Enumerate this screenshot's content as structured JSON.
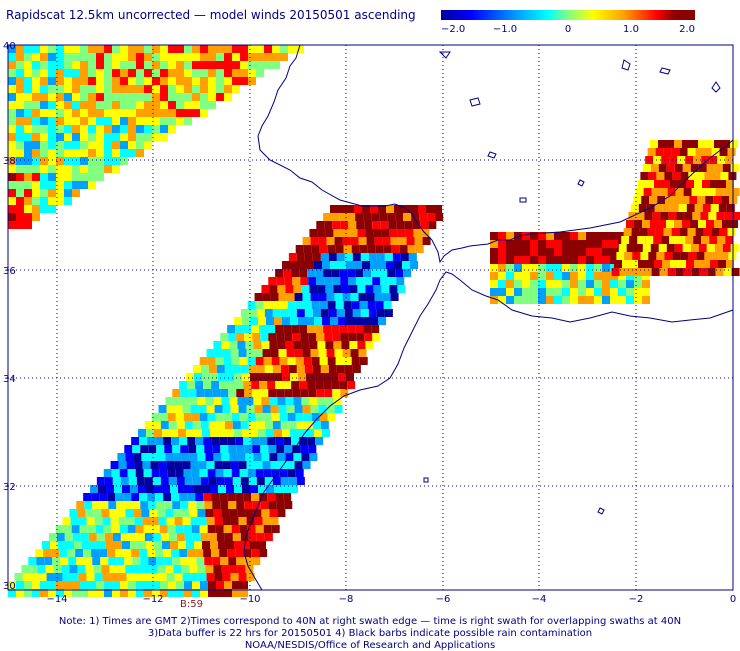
{
  "title": "Rapidscat 12.5km uncorrected — model winds 20150501 ascending",
  "colorbar": {
    "tick_labels": [
      "−2.0",
      "−1.0",
      "0",
      "1.0",
      "2.0"
    ],
    "colors": [
      "#0000a0",
      "#0000ff",
      "#00a0ff",
      "#00ffff",
      "#80ff80",
      "#ffff00",
      "#ffa000",
      "#ff0000",
      "#8b0000"
    ]
  },
  "axes": {
    "lat_labels": [
      "40",
      "38",
      "36",
      "34",
      "32",
      "30"
    ],
    "lon_labels": [
      "−14",
      "−12",
      "−10",
      "−8",
      "−6",
      "−4",
      "−2",
      "0"
    ]
  },
  "time_label": "B:59",
  "notes": {
    "line1": "Note: 1) Times are GMT 2)Times correspond to 40N at right swath edge — time is right swath for overlapping swaths at 40N",
    "line2": "3)Data buffer is 22 hrs for 20150501 4) Black barbs indicate possible rain contamination",
    "line3": "NOAA/NESDIS/Office of Research and Applications"
  },
  "map_colors": {
    "coastline": "#000080",
    "gridline": "#000080"
  }
}
